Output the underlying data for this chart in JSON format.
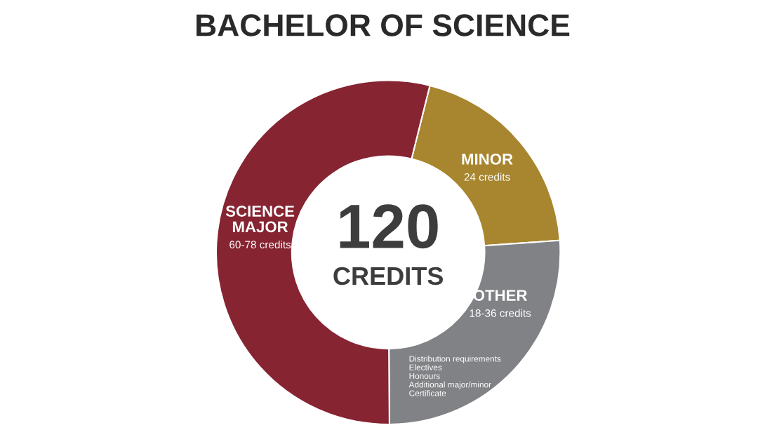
{
  "chart_data": {
    "type": "donut",
    "title": "BACHELOR OF SCIENCE",
    "categories": [
      "MINOR",
      "OTHER",
      "SCIENCE MAJOR"
    ],
    "values": [
      20,
      26,
      54
    ],
    "colors": [
      "#a8862f",
      "#818285",
      "#862432"
    ],
    "annotations": [
      "120",
      "CREDITS",
      "Distribution requirements\nElectives\nHonours\nAdditional major/minor\nCertificate",
      "24 credits",
      "18-36 credits",
      "60-78 credits"
    ],
    "legend": false
  }
}
